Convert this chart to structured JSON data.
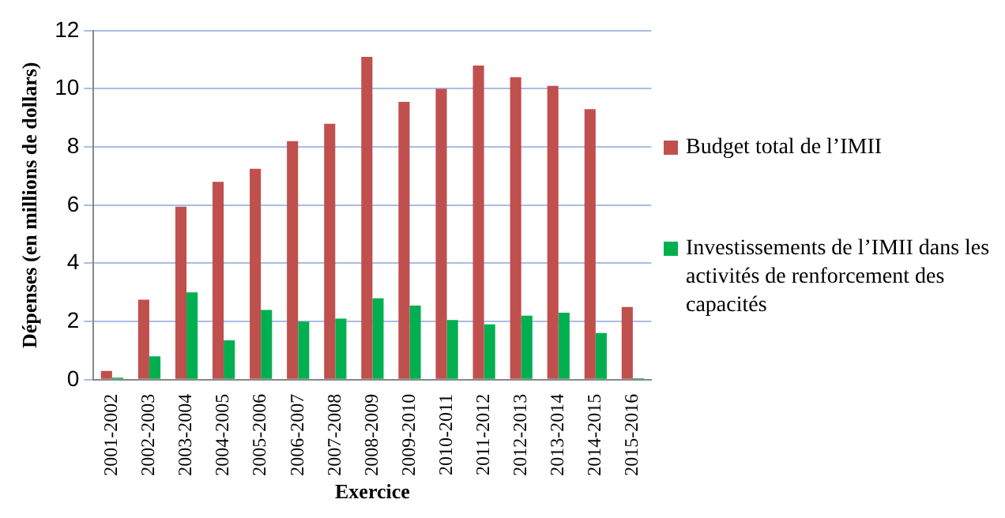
{
  "chart_data": {
    "type": "bar",
    "xlabel": "Exercice",
    "ylabel": "Dépenses (en millions de dollars)",
    "categories": [
      "2001-2002",
      "2002-2003",
      "2003-2004",
      "2004-2005",
      "2005-2006",
      "2006-2007",
      "2007-2008",
      "2008-2009",
      "2009-2010",
      "2010-2011",
      "2011-2012",
      "2012-2013",
      "2013-2014",
      "2014-2015",
      "2015-2016"
    ],
    "series": [
      {
        "name": "Budget total de l’IMII",
        "color": "#c0504d",
        "values": [
          0.3,
          2.75,
          5.95,
          6.8,
          7.25,
          8.2,
          8.8,
          11.1,
          9.55,
          10.0,
          10.8,
          10.4,
          10.1,
          9.3,
          2.5
        ]
      },
      {
        "name": "Investissements de l’IMII dans les activités de renforcement des capacités",
        "color": "#00b050",
        "values": [
          0.07,
          0.8,
          3.0,
          1.35,
          2.4,
          2.0,
          2.1,
          2.8,
          2.55,
          2.05,
          1.9,
          2.2,
          2.3,
          1.6,
          0.05
        ]
      }
    ],
    "ylim": [
      0,
      12
    ],
    "yticks": [
      0,
      2,
      4,
      6,
      8,
      10,
      12
    ],
    "grid": "y",
    "legend": "right"
  }
}
